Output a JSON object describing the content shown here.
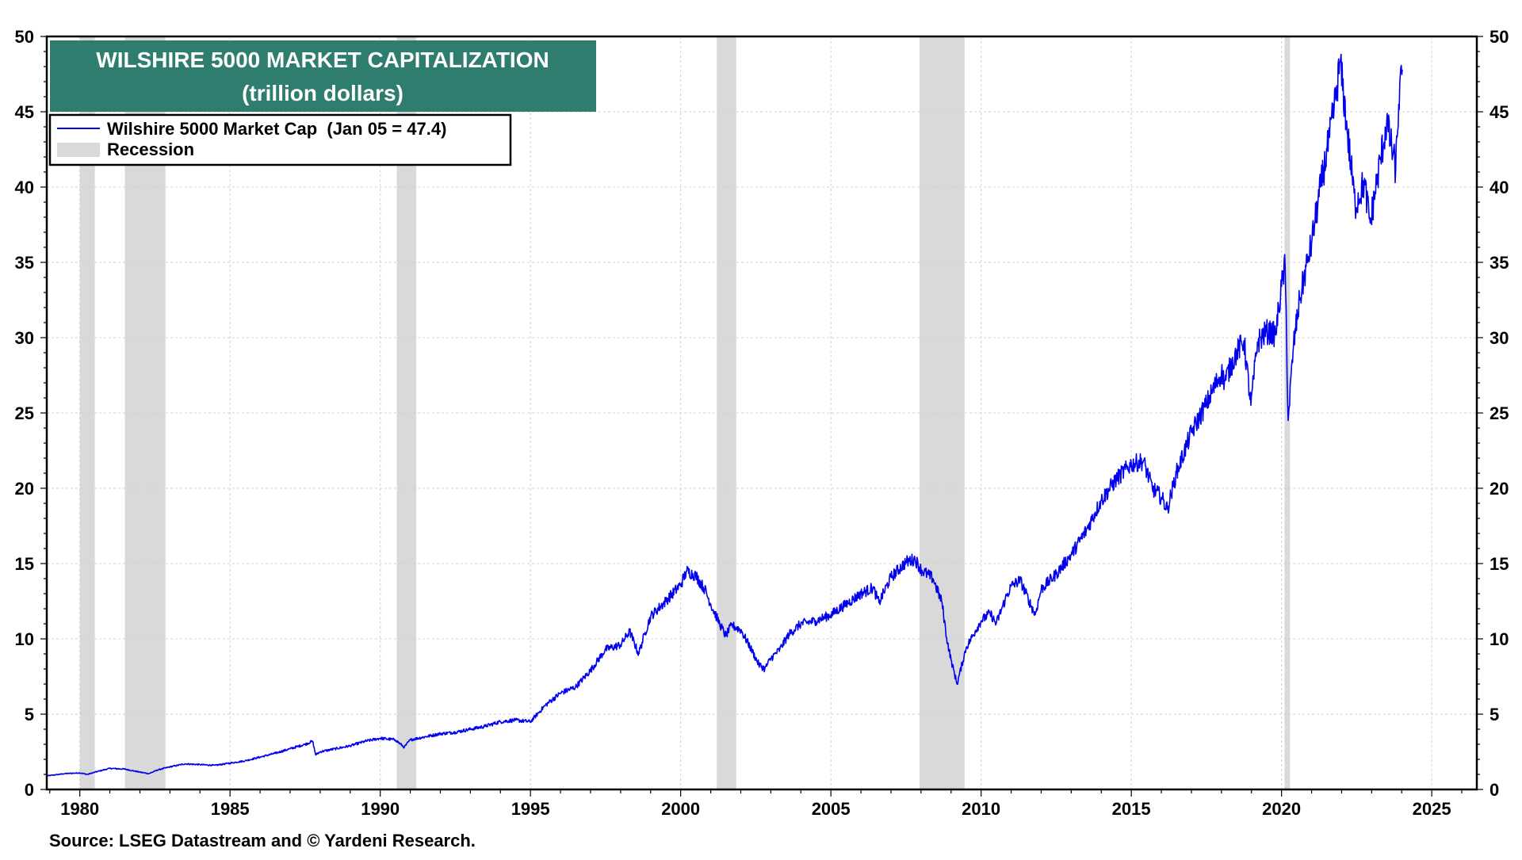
{
  "chart_data": {
    "type": "line",
    "title": "WILSHIRE 5000 MARKET CAPITALIZATION",
    "subtitle": "(trillion dollars)",
    "xlabel": "",
    "ylabel": "",
    "xlim": [
      1978.9,
      2026.5
    ],
    "ylim": [
      0,
      50
    ],
    "x_ticks": [
      1980,
      1985,
      1990,
      1995,
      2000,
      2005,
      2010,
      2015,
      2020,
      2025
    ],
    "y_ticks": [
      0,
      5,
      10,
      15,
      20,
      25,
      30,
      35,
      40,
      45,
      50
    ],
    "grid": true,
    "legend_position": "top-left",
    "series": [
      {
        "name": "Wilshire 5000 Market Cap  (Jan 05 = 47.4)",
        "color": "#0000ee",
        "x": [
          1978.9,
          1979.5,
          1980.0,
          1980.25,
          1980.6,
          1981.0,
          1981.5,
          1982.0,
          1982.3,
          1982.6,
          1983.0,
          1983.5,
          1984.0,
          1984.5,
          1985.0,
          1985.5,
          1986.0,
          1986.5,
          1987.0,
          1987.5,
          1987.75,
          1987.85,
          1988.0,
          1988.5,
          1989.0,
          1989.5,
          1990.0,
          1990.5,
          1990.8,
          1991.0,
          1991.5,
          1992.0,
          1992.5,
          1993.0,
          1993.5,
          1994.0,
          1994.5,
          1995.0,
          1995.5,
          1996.0,
          1996.5,
          1997.0,
          1997.5,
          1998.0,
          1998.3,
          1998.6,
          1998.8,
          1999.0,
          1999.5,
          2000.0,
          2000.2,
          2000.5,
          2000.8,
          2001.0,
          2001.3,
          2001.5,
          2001.7,
          2002.0,
          2002.3,
          2002.6,
          2002.8,
          2003.0,
          2003.3,
          2003.6,
          2004.0,
          2004.5,
          2005.0,
          2005.5,
          2006.0,
          2006.4,
          2006.6,
          2007.0,
          2007.5,
          2007.8,
          2008.0,
          2008.4,
          2008.7,
          2008.85,
          2009.0,
          2009.2,
          2009.5,
          2009.8,
          2010.0,
          2010.3,
          2010.5,
          2010.8,
          2011.0,
          2011.3,
          2011.6,
          2011.8,
          2012.0,
          2012.5,
          2013.0,
          2013.5,
          2014.0,
          2014.5,
          2015.0,
          2015.4,
          2015.7,
          2016.0,
          2016.2,
          2016.5,
          2017.0,
          2017.5,
          2018.0,
          2018.1,
          2018.5,
          2018.75,
          2018.98,
          2019.2,
          2019.5,
          2019.8,
          2020.0,
          2020.12,
          2020.22,
          2020.4,
          2020.6,
          2020.9,
          2021.0,
          2021.3,
          2021.6,
          2021.8,
          2021.95,
          2022.2,
          2022.45,
          2022.75,
          2022.95,
          2023.2,
          2023.5,
          2023.8,
          2023.9,
          2024.02
        ],
        "values": [
          0.9,
          1.05,
          1.1,
          1.0,
          1.2,
          1.4,
          1.35,
          1.15,
          1.05,
          1.3,
          1.5,
          1.7,
          1.65,
          1.6,
          1.75,
          1.9,
          2.15,
          2.4,
          2.7,
          3.0,
          3.2,
          2.3,
          2.5,
          2.7,
          2.9,
          3.2,
          3.4,
          3.3,
          2.8,
          3.3,
          3.5,
          3.7,
          3.8,
          4.0,
          4.2,
          4.5,
          4.6,
          4.5,
          5.6,
          6.4,
          6.8,
          7.9,
          9.3,
          9.6,
          10.5,
          9.0,
          10.3,
          11.5,
          12.5,
          13.6,
          14.5,
          14.2,
          13.3,
          12.3,
          11.0,
          10.2,
          10.9,
          10.6,
          9.5,
          8.3,
          8.0,
          8.7,
          9.3,
          10.3,
          11.0,
          11.2,
          11.6,
          12.3,
          13.0,
          13.4,
          12.4,
          14.1,
          15.1,
          15.3,
          14.6,
          14.0,
          12.4,
          10.1,
          8.6,
          7.0,
          9.4,
          10.5,
          11.2,
          11.7,
          11.0,
          12.6,
          13.5,
          13.9,
          12.5,
          11.6,
          13.3,
          14.3,
          15.6,
          17.2,
          19.2,
          20.6,
          21.6,
          21.8,
          20.0,
          19.4,
          18.6,
          21.0,
          23.7,
          25.6,
          27.7,
          27.1,
          29.0,
          29.8,
          25.5,
          29.7,
          30.4,
          30.2,
          33.4,
          34.8,
          24.5,
          29.5,
          32.5,
          35.4,
          36.3,
          40.0,
          43.3,
          45.9,
          48.3,
          43.5,
          38.8,
          40.3,
          37.6,
          40.7,
          44.3,
          41.2,
          45.5,
          47.8
        ]
      }
    ],
    "recessions": [
      {
        "start": 1980.0,
        "end": 1980.5
      },
      {
        "start": 1981.5,
        "end": 1982.85
      },
      {
        "start": 1990.55,
        "end": 1991.2
      },
      {
        "start": 2001.2,
        "end": 2001.85
      },
      {
        "start": 2007.95,
        "end": 2009.45
      },
      {
        "start": 2020.1,
        "end": 2020.28
      }
    ],
    "legend": [
      {
        "label": "Wilshire 5000 Market Cap  (Jan 05 = 47.4)",
        "kind": "line",
        "color": "#0000ee"
      },
      {
        "label": "Recession",
        "kind": "band",
        "color": "#d9d9d9"
      }
    ],
    "source": "Source: LSEG Datastream and © Yardeni Research.",
    "colors": {
      "title_box": "#2e7d6f",
      "title_text": "#ffffff",
      "recession": "#d9d9d9",
      "line": "#0000ee",
      "grid": "#d0d0d0"
    }
  }
}
